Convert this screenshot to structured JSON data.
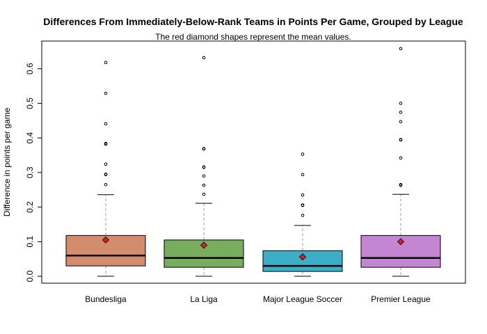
{
  "chart_data": {
    "type": "boxplot",
    "title": "Differences From Immediately-Below-Rank Teams in Points Per Game, Grouped by League",
    "subtitle": "The red diamond shapes represent the mean values.",
    "xlabel": "",
    "ylabel": "Difference in points per game",
    "ylim": [
      -0.02,
      0.68
    ],
    "yticks": [
      0.0,
      0.1,
      0.2,
      0.3,
      0.4,
      0.5,
      0.6
    ],
    "ytick_labels": [
      "0.0",
      "0.1",
      "0.2",
      "0.3",
      "0.4",
      "0.5",
      "0.6"
    ],
    "grid": false,
    "mean_marker_color": "#e01d24",
    "categories": [
      "Bundesliga",
      "La Liga",
      "Major League Soccer",
      "Premier League"
    ],
    "boxes": [
      {
        "category": "Bundesliga",
        "color": "#d48c6c",
        "whisker_low": 0.0,
        "q1": 0.03,
        "median": 0.06,
        "q3": 0.118,
        "whisker_high": 0.236,
        "mean": 0.105,
        "outliers": [
          0.265,
          0.294,
          0.295,
          0.324,
          0.382,
          0.384,
          0.441,
          0.529,
          0.618
        ]
      },
      {
        "category": "La Liga",
        "color": "#77ad5c",
        "whisker_low": 0.0,
        "q1": 0.026,
        "median": 0.053,
        "q3": 0.105,
        "whisker_high": 0.211,
        "mean": 0.09,
        "outliers": [
          0.237,
          0.263,
          0.29,
          0.315,
          0.316,
          0.368,
          0.369,
          0.632
        ]
      },
      {
        "category": "Major League Soccer",
        "color": "#3eaec8",
        "whisker_low": 0.0,
        "q1": 0.014,
        "median": 0.03,
        "q3": 0.074,
        "whisker_high": 0.147,
        "mean": 0.056,
        "outliers": [
          0.176,
          0.205,
          0.206,
          0.235,
          0.294,
          0.353
        ]
      },
      {
        "category": "Premier League",
        "color": "#c485d2",
        "whisker_low": 0.0,
        "q1": 0.026,
        "median": 0.053,
        "q3": 0.118,
        "whisker_high": 0.237,
        "mean": 0.1,
        "outliers": [
          0.263,
          0.265,
          0.342,
          0.394,
          0.395,
          0.447,
          0.474,
          0.5,
          0.658
        ]
      }
    ]
  }
}
